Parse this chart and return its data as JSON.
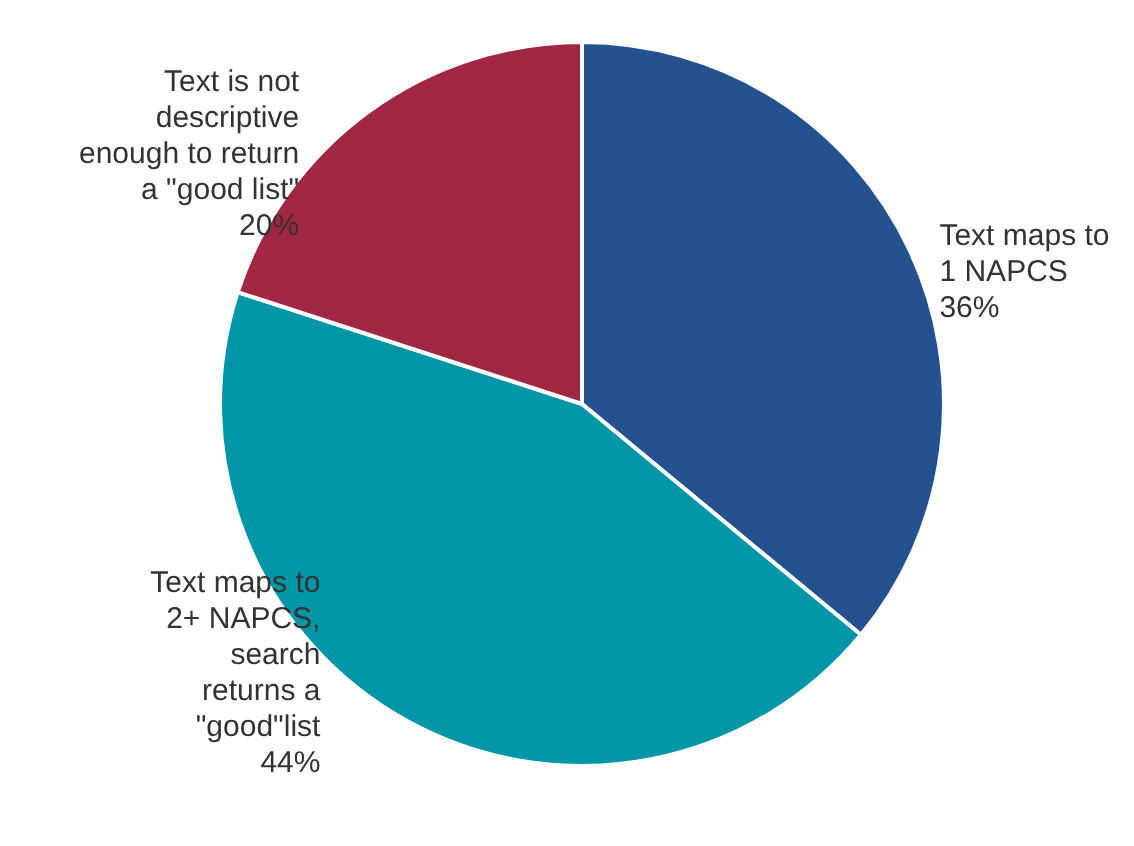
{
  "chart_data": {
    "type": "pie",
    "categories": [
      "Text maps to\n1 NAPCS",
      "Text maps to\n2+ NAPCS,\nsearch\nreturns a\n\"good\"list",
      "Text is not\ndescriptive\nenough to return\na \"good list\""
    ],
    "values": [
      36,
      44,
      20
    ],
    "colors": [
      "#24528f",
      "#0096a8",
      "#a02842"
    ],
    "value_labels": [
      "36%",
      "44%",
      "20%"
    ]
  }
}
